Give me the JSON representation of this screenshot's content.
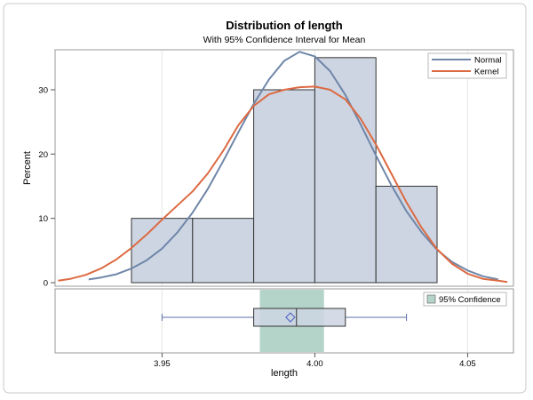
{
  "chart_data": {
    "type": "bar",
    "title": "Distribution of length",
    "subtitle": "With 95% Confidence Interval for Mean",
    "xlabel": "length",
    "ylabel": "Percent",
    "xlim": [
      3.915,
      4.065
    ],
    "ylim": [
      0,
      37
    ],
    "x_ticks": [
      3.95,
      4.0,
      4.05
    ],
    "x_tick_labels": [
      "3.95",
      "4.00",
      "4.05"
    ],
    "y_ticks": [
      0,
      10,
      20,
      30
    ],
    "y_tick_labels": [
      "0",
      "10",
      "20",
      "30"
    ],
    "histogram": {
      "bins": [
        {
          "start": 3.94,
          "end": 3.96,
          "percent": 10
        },
        {
          "start": 3.96,
          "end": 3.98,
          "percent": 10
        },
        {
          "start": 3.98,
          "end": 4.0,
          "percent": 30
        },
        {
          "start": 4.0,
          "end": 4.02,
          "percent": 35
        },
        {
          "start": 4.02,
          "end": 4.04,
          "percent": 15
        }
      ],
      "fill": "#cdd5e3",
      "stroke": "#333333"
    },
    "series": [
      {
        "name": "Normal",
        "color": "#6f86a8",
        "x": [
          3.926,
          3.93,
          3.935,
          3.94,
          3.945,
          3.95,
          3.955,
          3.96,
          3.965,
          3.97,
          3.975,
          3.98,
          3.985,
          3.99,
          3.995,
          4.0,
          4.005,
          4.01,
          4.015,
          4.02,
          4.025,
          4.03,
          4.035,
          4.04,
          4.045,
          4.05,
          4.055,
          4.06
        ],
        "values": [
          0.5,
          0.8,
          1.3,
          2.2,
          3.5,
          5.3,
          7.8,
          10.9,
          14.6,
          18.9,
          23.4,
          27.8,
          31.6,
          34.5,
          35.9,
          35.2,
          32.9,
          29.2,
          24.6,
          19.8,
          15.2,
          11.1,
          7.8,
          5.1,
          3.2,
          1.9,
          1.0,
          0.5
        ]
      },
      {
        "name": "Kernel",
        "color": "#dc6a42",
        "x": [
          3.916,
          3.92,
          3.925,
          3.93,
          3.935,
          3.94,
          3.945,
          3.95,
          3.955,
          3.96,
          3.965,
          3.97,
          3.975,
          3.98,
          3.985,
          3.99,
          3.995,
          4.0,
          4.005,
          4.01,
          4.015,
          4.02,
          4.025,
          4.03,
          4.035,
          4.04,
          4.045,
          4.05,
          4.055,
          4.06,
          4.063
        ],
        "values": [
          0.3,
          0.6,
          1.2,
          2.2,
          3.6,
          5.4,
          7.5,
          9.8,
          12.0,
          14.2,
          17.0,
          20.5,
          24.5,
          27.5,
          29.3,
          30.0,
          30.4,
          30.5,
          30.0,
          28.5,
          25.5,
          21.5,
          17.0,
          12.5,
          8.5,
          5.2,
          2.9,
          1.4,
          0.6,
          0.3,
          0.1
        ]
      }
    ],
    "legend": {
      "position": "top-right",
      "entries": [
        {
          "label": "Normal",
          "color": "#6f86a8"
        },
        {
          "label": "Kernel",
          "color": "#dc6a42"
        }
      ]
    },
    "boxplot": {
      "min": 3.95,
      "q1": 3.98,
      "median": 3.994,
      "q3": 4.01,
      "max": 4.03,
      "mean": 3.992,
      "box_fill": "#cdd5e3",
      "whisker_color": "#5b6fa6",
      "mean_marker_color": "#4a5cc5"
    },
    "confidence_interval": {
      "label": "95% Confidence",
      "lower": 3.982,
      "upper": 4.003,
      "color": "#b5d4c9"
    }
  }
}
